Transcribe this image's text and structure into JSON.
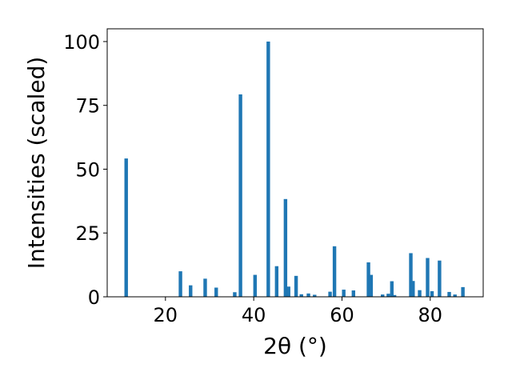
{
  "chart_data": {
    "type": "bar",
    "title": "",
    "xlabel": "2θ (°)",
    "ylabel": "Intensities (scaled)",
    "xlim": [
      6.8,
      92
    ],
    "ylim": [
      0,
      105
    ],
    "xticks": [
      20,
      40,
      60,
      80
    ],
    "yticks": [
      0,
      25,
      50,
      75,
      100
    ],
    "grid": false,
    "bar_width": 0.8,
    "color": "#1f77b4",
    "x": [
      11.1,
      23.4,
      25.7,
      29.0,
      31.5,
      35.7,
      37.0,
      40.3,
      43.3,
      45.2,
      47.2,
      47.9,
      49.6,
      50.8,
      52.4,
      53.8,
      57.3,
      58.3,
      60.4,
      62.6,
      66.0,
      66.6,
      69.2,
      70.5,
      71.3,
      71.9,
      75.6,
      76.1,
      77.6,
      79.4,
      80.4,
      82.1,
      84.3,
      85.6,
      87.4
    ],
    "values": [
      54.2,
      10.0,
      4.5,
      7.1,
      3.6,
      1.8,
      79.3,
      8.6,
      100.0,
      12.0,
      38.3,
      4.0,
      8.2,
      1.0,
      1.3,
      0.8,
      2.0,
      19.8,
      2.8,
      2.5,
      13.5,
      8.6,
      0.9,
      1.2,
      6.1,
      0.7,
      17.1,
      6.2,
      2.6,
      15.2,
      2.2,
      14.2,
      1.9,
      0.9,
      3.8
    ]
  }
}
